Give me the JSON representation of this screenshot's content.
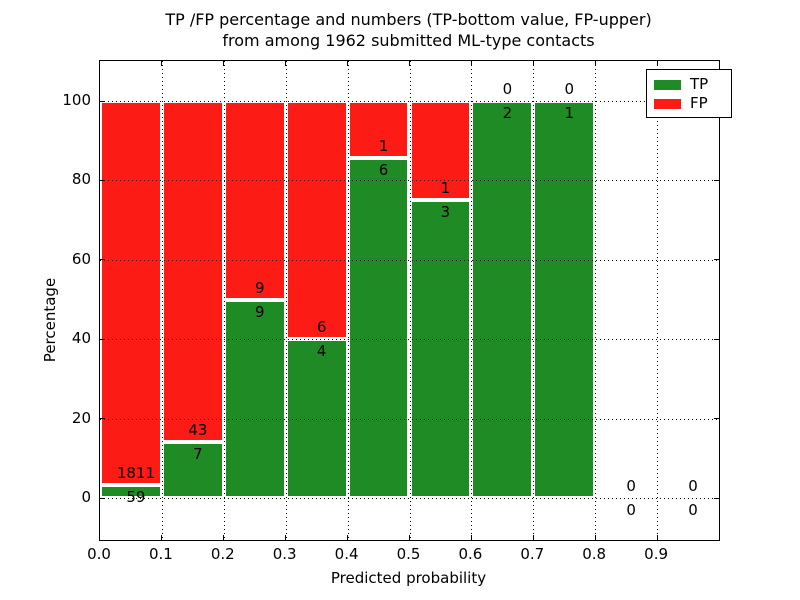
{
  "figure": {
    "title_line1": "TP /FP percentage and numbers (TP-bottom value, FP-upper)",
    "title_line2": "from among 1962 submitted ML-type contacts"
  },
  "axes": {
    "xlabel": "Predicted probability",
    "ylabel": "Percentage",
    "xtick_labels": [
      "0.0",
      "0.1",
      "0.2",
      "0.3",
      "0.4",
      "0.5",
      "0.6",
      "0.7",
      "0.8",
      "0.9"
    ],
    "ytick_labels": [
      "0",
      "20",
      "40",
      "60",
      "80",
      "100"
    ],
    "ytick_values": [
      0,
      20,
      40,
      60,
      80,
      100
    ]
  },
  "legend": {
    "items": [
      {
        "label": "TP",
        "color": "#1f8b24"
      },
      {
        "label": "FP",
        "color": "#fd1b16"
      }
    ]
  },
  "colors": {
    "tp_green": "#1f8b24",
    "fp_red": "#fd1b16",
    "grid": "#000000",
    "background": "#ffffff"
  },
  "chart_data": {
    "type": "bar",
    "stacked": true,
    "normalized_to_percent": true,
    "title": "TP /FP percentage and numbers (TP-bottom value, FP-upper) from among 1962 submitted ML-type contacts",
    "xlabel": "Predicted probability",
    "ylabel": "Percentage",
    "xlim": [
      0.0,
      1.0
    ],
    "ylim_percent": [
      -12,
      112
    ],
    "grid": "dotted",
    "legend_position": "upper right",
    "bin_edges": [
      0.0,
      0.1,
      0.2,
      0.3,
      0.4,
      0.5,
      0.6,
      0.7,
      0.8,
      0.9,
      1.0
    ],
    "categories": [
      "0.0-0.1",
      "0.1-0.2",
      "0.2-0.3",
      "0.3-0.4",
      "0.4-0.5",
      "0.5-0.6",
      "0.6-0.7",
      "0.7-0.8",
      "0.8-0.9",
      "0.9-1.0"
    ],
    "series": [
      {
        "name": "TP",
        "color": "#1f8b24",
        "counts": [
          59,
          7,
          9,
          4,
          6,
          3,
          2,
          1,
          0,
          0
        ],
        "percent": [
          3.2,
          14.0,
          50.0,
          40.0,
          85.7,
          75.0,
          100.0,
          100.0,
          0,
          0
        ]
      },
      {
        "name": "FP",
        "color": "#fd1b16",
        "counts": [
          1811,
          43,
          9,
          6,
          1,
          1,
          0,
          0,
          0,
          0
        ],
        "percent": [
          96.8,
          86.0,
          50.0,
          60.0,
          14.3,
          25.0,
          0,
          0,
          0,
          0
        ]
      }
    ],
    "total_contacts": 1962
  }
}
